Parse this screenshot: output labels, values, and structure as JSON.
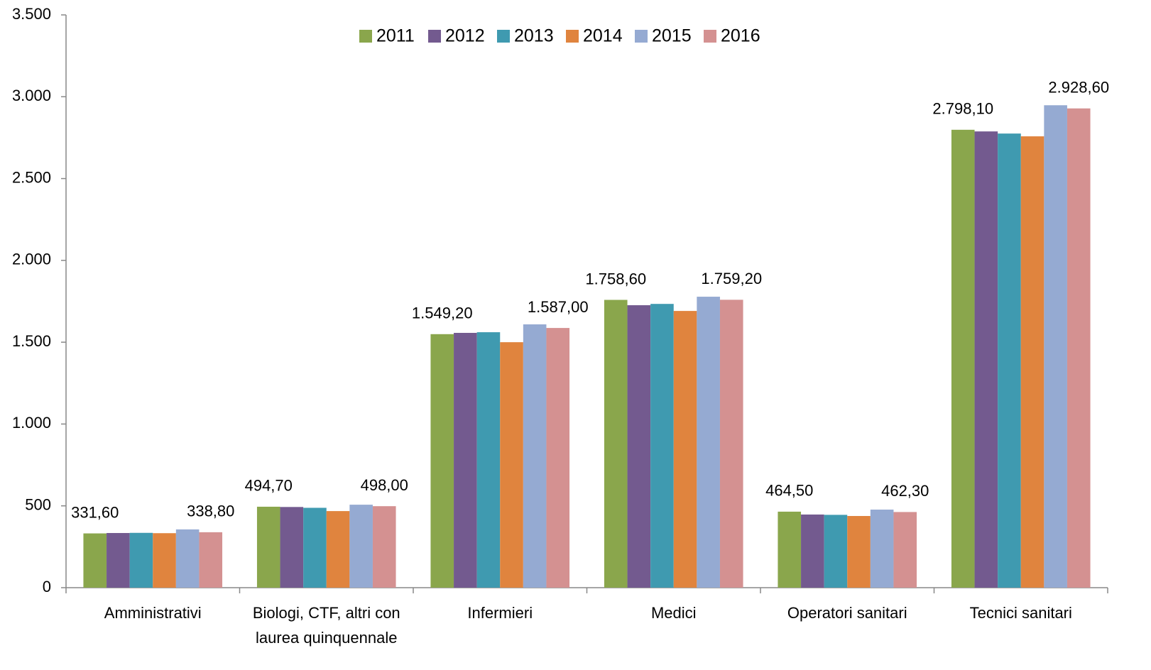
{
  "chart_data": {
    "type": "bar",
    "categories": [
      "Amministrativi",
      "Biologi, CTF, altri con laurea quinquennale",
      "Infermieri",
      "Medici",
      "Operatori sanitari",
      "Tecnici sanitari"
    ],
    "series": [
      {
        "name": "2011",
        "color": "#8aa64c",
        "values": [
          331.6,
          494.7,
          1549.2,
          1758.6,
          464.5,
          2798.1
        ],
        "value_labels": [
          "331,60",
          "494,70",
          "1.549,20",
          "1.758,60",
          "464,50",
          "2.798,10"
        ]
      },
      {
        "name": "2012",
        "color": "#735a8f",
        "values": [
          334,
          493,
          1557,
          1726,
          447,
          2788
        ]
      },
      {
        "name": "2013",
        "color": "#3f9ab0",
        "values": [
          335,
          488,
          1561,
          1734,
          445,
          2775
        ]
      },
      {
        "name": "2014",
        "color": "#e0843e",
        "values": [
          333,
          468,
          1500,
          1691,
          438,
          2758
        ]
      },
      {
        "name": "2015",
        "color": "#95aad2",
        "values": [
          356,
          507,
          1609,
          1778,
          477,
          2948
        ]
      },
      {
        "name": "2016",
        "color": "#d49191",
        "values": [
          338.8,
          498.0,
          1587.0,
          1759.2,
          462.3,
          2928.6
        ],
        "value_labels": [
          "338,80",
          "498,00",
          "1.587,00",
          "1.759,20",
          "462,30",
          "2.928,60"
        ]
      }
    ],
    "ylim": [
      0,
      3500
    ],
    "yticks": [
      0,
      500,
      {
        "value": 1000,
        "label": "1.000"
      },
      {
        "value": 1500,
        "label": "1.500"
      },
      {
        "value": 2000,
        "label": "2.000"
      },
      {
        "value": 2500,
        "label": "2.500"
      },
      {
        "value": 3000,
        "label": "3.000"
      },
      {
        "value": 3500,
        "label": "3.500"
      }
    ],
    "grid": false,
    "legend": "top"
  }
}
